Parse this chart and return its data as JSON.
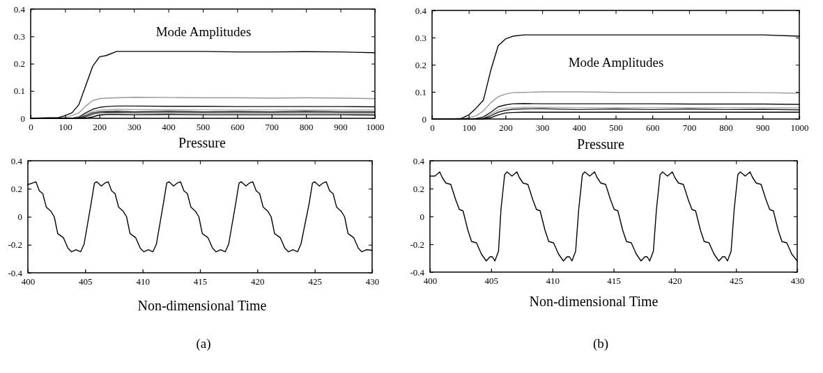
{
  "chart_data": [
    {
      "type": "line",
      "xlabel": "Pressure",
      "annotations": [
        "Mode Amplitudes"
      ],
      "x": [
        0,
        50,
        80,
        100,
        120,
        140,
        160,
        180,
        200,
        220,
        250,
        300,
        400,
        500,
        600,
        700,
        800,
        900,
        1000
      ],
      "xlim": [
        0,
        1000
      ],
      "xticks": [
        0,
        100,
        200,
        300,
        400,
        500,
        600,
        700,
        800,
        900,
        1000
      ],
      "ylim": [
        0,
        0.4
      ],
      "yticks": [
        0,
        0.1,
        0.2,
        0.3,
        0.4
      ],
      "grid": false,
      "series": [
        {
          "color": "#000000",
          "values": [
            0,
            0.002,
            0.002,
            0.01,
            0.02,
            0.05,
            0.12,
            0.19,
            0.225,
            0.23,
            0.245,
            0.245,
            0.245,
            0.245,
            0.243,
            0.243,
            0.244,
            0.243,
            0.24
          ]
        },
        {
          "color": "#999999",
          "values": [
            0,
            0,
            0,
            0.003,
            0.01,
            0.02,
            0.045,
            0.065,
            0.072,
            0.074,
            0.075,
            0.077,
            0.076,
            0.075,
            0.075,
            0.074,
            0.075,
            0.074,
            0.072
          ]
        },
        {
          "color": "#111111",
          "values": [
            0,
            0,
            0,
            0,
            0,
            0.005,
            0.02,
            0.033,
            0.04,
            0.043,
            0.045,
            0.045,
            0.044,
            0.044,
            0.043,
            0.043,
            0.043,
            0.043,
            0.042
          ]
        },
        {
          "color": "#aaaaaa",
          "values": [
            0,
            0,
            0,
            0,
            0,
            0.003,
            0.015,
            0.025,
            0.03,
            0.032,
            0.033,
            0.032,
            0.032,
            0.031,
            0.031,
            0.031,
            0.031,
            0.03,
            0.03
          ]
        },
        {
          "color": "#222222",
          "values": [
            0,
            0,
            0,
            0,
            0,
            0.002,
            0.01,
            0.02,
            0.024,
            0.025,
            0.026,
            0.024,
            0.026,
            0.024,
            0.025,
            0.024,
            0.026,
            0.024,
            0.024
          ]
        },
        {
          "color": "#333333",
          "values": [
            0,
            0,
            0,
            0,
            0,
            0,
            0.005,
            0.015,
            0.02,
            0.021,
            0.021,
            0.02,
            0.02,
            0.02,
            0.02,
            0.02,
            0.02,
            0.02,
            0.02
          ]
        },
        {
          "color": "#000000",
          "values": [
            0,
            0,
            0,
            0,
            0,
            0,
            0,
            0.005,
            0.012,
            0.014,
            0.014,
            0.013,
            0.014,
            0.013,
            0.013,
            0.013,
            0.013,
            0.013,
            0.012
          ]
        }
      ]
    },
    {
      "type": "line",
      "xlabel": "Non-dimensional Time",
      "annotations": [
        "(a)"
      ],
      "xlim": [
        400,
        430
      ],
      "xticks": [
        400,
        405,
        410,
        415,
        420,
        425,
        430
      ],
      "ylim": [
        -0.4,
        0.4
      ],
      "yticks": [
        -0.4,
        -0.2,
        0,
        0.2,
        0.4
      ],
      "grid": false,
      "series": [
        {
          "color": "#000000",
          "x": [
            400,
            400.4,
            400.7,
            401,
            401.3,
            401.6,
            402,
            402.3,
            402.6,
            403.1,
            403.5,
            403.8,
            404.2,
            404.6,
            404.9,
            405.5,
            405.8,
            406,
            406.4,
            406.7,
            407,
            407.3,
            407.6,
            407.9,
            408.3,
            408.6,
            408.9,
            409.4,
            409.8,
            410.1,
            410.5,
            410.9,
            411.2,
            411.8,
            412.1,
            412.3,
            412.7,
            413,
            413.3,
            413.6,
            413.9,
            414.2,
            414.6,
            414.9,
            415.2,
            415.7,
            416.1,
            416.4,
            416.8,
            417.2,
            417.5,
            418.1,
            418.4,
            418.6,
            419,
            419.3,
            419.6,
            419.9,
            420.2,
            420.5,
            420.9,
            421.2,
            421.5,
            422,
            422.4,
            422.7,
            423.1,
            423.5,
            423.8,
            424.5,
            424.8,
            425,
            425.4,
            425.7,
            426,
            426.3,
            426.6,
            426.9,
            427.3,
            427.6,
            427.9,
            428.4,
            428.8,
            429.1,
            429.5,
            430
          ],
          "values": [
            0.23,
            0.24,
            0.25,
            0.185,
            0.165,
            0.07,
            0.04,
            0,
            -0.12,
            -0.15,
            -0.225,
            -0.25,
            -0.235,
            -0.25,
            -0.195,
            0.09,
            0.24,
            0.25,
            0.22,
            0.24,
            0.25,
            0.185,
            0.165,
            0.07,
            0.04,
            0,
            -0.12,
            -0.15,
            -0.225,
            -0.25,
            -0.235,
            -0.25,
            -0.195,
            0.09,
            0.24,
            0.25,
            0.22,
            0.24,
            0.25,
            0.185,
            0.165,
            0.07,
            0.04,
            0,
            -0.12,
            -0.15,
            -0.225,
            -0.25,
            -0.235,
            -0.25,
            -0.195,
            0.09,
            0.24,
            0.25,
            0.22,
            0.24,
            0.25,
            0.185,
            0.165,
            0.07,
            0.04,
            0,
            -0.12,
            -0.15,
            -0.225,
            -0.25,
            -0.235,
            -0.25,
            -0.195,
            0.09,
            0.24,
            0.25,
            0.22,
            0.24,
            0.25,
            0.185,
            0.165,
            0.07,
            0.04,
            0,
            -0.12,
            -0.15,
            -0.225,
            -0.25,
            -0.235,
            -0.24
          ]
        }
      ]
    },
    {
      "type": "line",
      "xlabel": "Pressure",
      "annotations": [
        "Mode Amplitudes"
      ],
      "x": [
        0,
        50,
        80,
        100,
        120,
        140,
        160,
        180,
        200,
        220,
        250,
        300,
        400,
        500,
        600,
        700,
        800,
        900,
        1000
      ],
      "xlim": [
        0,
        1000
      ],
      "xticks": [
        0,
        100,
        200,
        300,
        400,
        500,
        600,
        700,
        800,
        900,
        1000
      ],
      "ylim": [
        0,
        0.4
      ],
      "yticks": [
        0,
        0.1,
        0.2,
        0.3,
        0.4
      ],
      "grid": false,
      "series": [
        {
          "color": "#000000",
          "values": [
            0,
            0,
            0.002,
            0.015,
            0.04,
            0.07,
            0.18,
            0.27,
            0.295,
            0.305,
            0.31,
            0.31,
            0.31,
            0.31,
            0.31,
            0.31,
            0.31,
            0.31,
            0.305
          ]
        },
        {
          "color": "#999999",
          "values": [
            0,
            0,
            0,
            0.005,
            0.012,
            0.03,
            0.06,
            0.082,
            0.092,
            0.097,
            0.098,
            0.1,
            0.1,
            0.098,
            0.098,
            0.098,
            0.098,
            0.097,
            0.095
          ]
        },
        {
          "color": "#111111",
          "values": [
            0,
            0,
            0,
            0,
            0.002,
            0.008,
            0.025,
            0.045,
            0.052,
            0.056,
            0.057,
            0.056,
            0.056,
            0.056,
            0.056,
            0.055,
            0.055,
            0.055,
            0.054
          ]
        },
        {
          "color": "#aaaaaa",
          "values": [
            0,
            0,
            0,
            0,
            0,
            0.004,
            0.018,
            0.033,
            0.04,
            0.042,
            0.043,
            0.043,
            0.042,
            0.042,
            0.042,
            0.042,
            0.042,
            0.042,
            0.041
          ]
        },
        {
          "color": "#222222",
          "values": [
            0,
            0,
            0,
            0,
            0,
            0.002,
            0.012,
            0.025,
            0.032,
            0.036,
            0.037,
            0.038,
            0.035,
            0.037,
            0.035,
            0.037,
            0.035,
            0.036,
            0.034
          ]
        },
        {
          "color": "#000000",
          "values": [
            0,
            0,
            0,
            0,
            0,
            0,
            0.005,
            0.015,
            0.022,
            0.024,
            0.025,
            0.025,
            0.025,
            0.025,
            0.025,
            0.025,
            0.025,
            0.025,
            0.025
          ]
        }
      ]
    },
    {
      "type": "line",
      "xlabel": "Non-dimensional Time",
      "annotations": [
        "(b)"
      ],
      "xlim": [
        400,
        430
      ],
      "xticks": [
        400,
        405,
        410,
        415,
        420,
        425,
        430
      ],
      "ylim": [
        -0.4,
        0.4
      ],
      "yticks": [
        -0.4,
        -0.2,
        0,
        0.2,
        0.4
      ],
      "grid": false,
      "series": [
        {
          "color": "#000000",
          "x": [
            400,
            400.4,
            400.8,
            401,
            401.3,
            401.7,
            402.1,
            402.4,
            402.7,
            403.1,
            403.4,
            403.8,
            404.2,
            404.6,
            404.9,
            405.1,
            405.3,
            405.6,
            405.8,
            406.1,
            406.3,
            406.7,
            407.1,
            407.3,
            407.6,
            408,
            408.4,
            408.7,
            409,
            409.4,
            409.7,
            410.1,
            410.5,
            410.9,
            411.2,
            411.4,
            411.6,
            411.9,
            412.15,
            412.45,
            412.65,
            413.05,
            413.45,
            413.65,
            413.95,
            414.35,
            414.75,
            415.05,
            415.35,
            415.75,
            416.05,
            416.45,
            416.85,
            417.25,
            417.55,
            417.75,
            417.95,
            418.25,
            418.5,
            418.8,
            419,
            419.4,
            419.8,
            420,
            420.3,
            420.7,
            421.1,
            421.4,
            421.7,
            422.1,
            422.4,
            422.8,
            423.2,
            423.6,
            423.9,
            424.1,
            424.3,
            424.6,
            424.85,
            425.15,
            425.35,
            425.75,
            426.15,
            426.35,
            426.65,
            427.05,
            427.45,
            427.75,
            428.05,
            428.45,
            428.75,
            429.15,
            429.55,
            430
          ],
          "values": [
            0.29,
            0.29,
            0.32,
            0.28,
            0.24,
            0.23,
            0.12,
            0.05,
            0.04,
            -0.1,
            -0.18,
            -0.19,
            -0.27,
            -0.32,
            -0.29,
            -0.29,
            -0.32,
            -0.25,
            0.05,
            0.3,
            0.32,
            0.29,
            0.32,
            0.28,
            0.24,
            0.23,
            0.12,
            0.05,
            0.04,
            -0.1,
            -0.18,
            -0.19,
            -0.27,
            -0.32,
            -0.29,
            -0.29,
            -0.32,
            -0.25,
            0.05,
            0.3,
            0.32,
            0.29,
            0.32,
            0.28,
            0.24,
            0.23,
            0.12,
            0.05,
            0.04,
            -0.1,
            -0.18,
            -0.19,
            -0.27,
            -0.32,
            -0.29,
            -0.29,
            -0.32,
            -0.25,
            0.05,
            0.3,
            0.32,
            0.29,
            0.32,
            0.28,
            0.24,
            0.23,
            0.12,
            0.05,
            0.04,
            -0.1,
            -0.18,
            -0.19,
            -0.27,
            -0.32,
            -0.29,
            -0.29,
            -0.32,
            -0.25,
            0.05,
            0.3,
            0.32,
            0.29,
            0.32,
            0.28,
            0.24,
            0.23,
            0.12,
            0.05,
            0.04,
            -0.1,
            -0.18,
            -0.19,
            -0.27,
            -0.32
          ]
        }
      ]
    }
  ]
}
